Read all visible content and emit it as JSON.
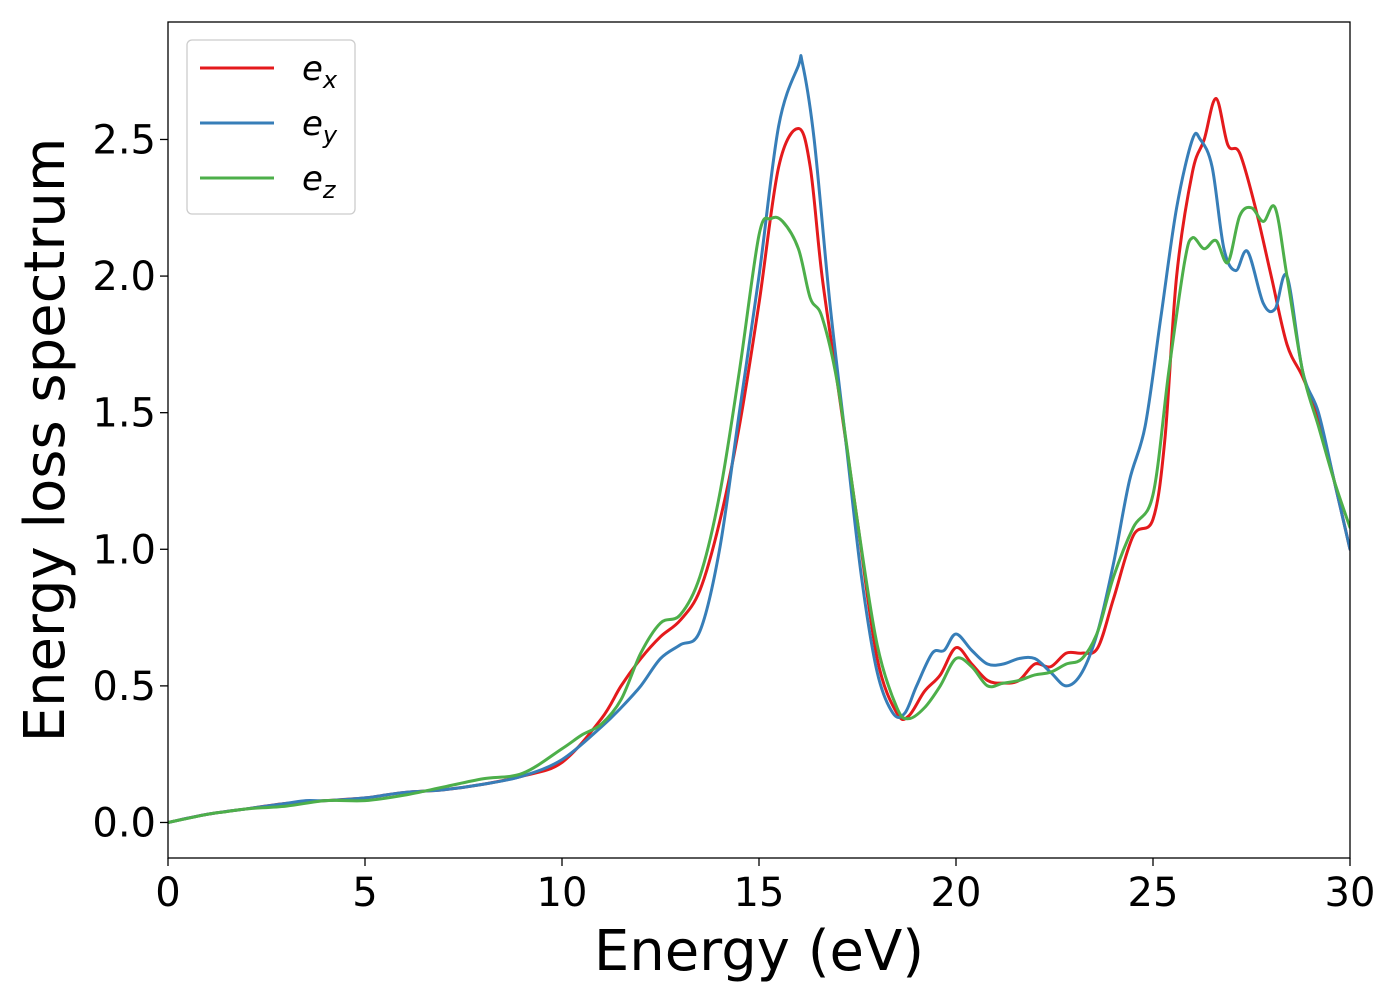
{
  "chart_data": {
    "type": "line",
    "xlabel": "Energy (eV)",
    "ylabel": "Energy loss spectrum",
    "xlim": [
      0,
      30
    ],
    "ylim": [
      -0.13,
      2.93
    ],
    "xticks": [
      0,
      5,
      10,
      15,
      20,
      25,
      30
    ],
    "xtick_labels": [
      "0",
      "5",
      "10",
      "15",
      "20",
      "25",
      "30"
    ],
    "yticks": [
      0.0,
      0.5,
      1.0,
      1.5,
      2.0,
      2.5
    ],
    "ytick_labels": [
      "0.0",
      "0.5",
      "1.0",
      "1.5",
      "2.0",
      "2.5"
    ],
    "grid": false,
    "legend_position": "top-left",
    "series": [
      {
        "name": "e",
        "subscript": "x",
        "color": "#e41a1c",
        "x": [
          0,
          1,
          2,
          3,
          4,
          5,
          6,
          7,
          8,
          9,
          10,
          11,
          11.5,
          12,
          12.5,
          13,
          13.5,
          14,
          14.5,
          15,
          15.5,
          16,
          16.3,
          16.6,
          17,
          17.5,
          18,
          18.5,
          18.8,
          19.2,
          19.6,
          20,
          20.4,
          20.8,
          21.2,
          21.6,
          22,
          22.4,
          22.8,
          23.2,
          23.6,
          24,
          24.5,
          25,
          25.3,
          25.6,
          26,
          26.3,
          26.6,
          26.9,
          27.2,
          27.6,
          28,
          28.4,
          28.8,
          29.2,
          29.6,
          30
        ],
        "y": [
          0,
          0.03,
          0.05,
          0.07,
          0.08,
          0.09,
          0.11,
          0.12,
          0.14,
          0.17,
          0.22,
          0.38,
          0.5,
          0.6,
          0.68,
          0.74,
          0.85,
          1.1,
          1.45,
          1.9,
          2.4,
          2.54,
          2.4,
          2.0,
          1.6,
          1.1,
          0.6,
          0.4,
          0.39,
          0.48,
          0.54,
          0.64,
          0.58,
          0.52,
          0.51,
          0.52,
          0.58,
          0.57,
          0.62,
          0.62,
          0.64,
          0.82,
          1.05,
          1.11,
          1.4,
          2.0,
          2.38,
          2.5,
          2.65,
          2.48,
          2.45,
          2.25,
          2.0,
          1.75,
          1.63,
          1.48,
          1.25,
          1.0
        ]
      },
      {
        "name": "e",
        "subscript": "y",
        "color": "#377eb8",
        "x": [
          0,
          1,
          2,
          3,
          3.5,
          4,
          5,
          6,
          7,
          8,
          9,
          10,
          11,
          11.5,
          12,
          12.5,
          13,
          13.5,
          14,
          14.5,
          15,
          15.5,
          16,
          16.1,
          16.4,
          16.8,
          17.2,
          17.6,
          18,
          18.4,
          18.7,
          19,
          19.4,
          19.7,
          20,
          20.4,
          20.8,
          21.2,
          21.6,
          22,
          22.4,
          22.8,
          23.2,
          23.6,
          24,
          24.4,
          24.8,
          25.2,
          25.6,
          26,
          26.2,
          26.5,
          26.8,
          27.1,
          27.4,
          27.8,
          28.1,
          28.4,
          28.8,
          29.2,
          29.6,
          30
        ],
        "y": [
          0,
          0.03,
          0.05,
          0.07,
          0.08,
          0.08,
          0.09,
          0.11,
          0.12,
          0.14,
          0.17,
          0.23,
          0.35,
          0.42,
          0.5,
          0.6,
          0.65,
          0.7,
          1.0,
          1.5,
          2.0,
          2.55,
          2.77,
          2.78,
          2.5,
          1.9,
          1.4,
          0.9,
          0.55,
          0.4,
          0.4,
          0.5,
          0.62,
          0.63,
          0.69,
          0.63,
          0.58,
          0.58,
          0.6,
          0.6,
          0.55,
          0.5,
          0.55,
          0.7,
          0.95,
          1.25,
          1.45,
          1.85,
          2.25,
          2.5,
          2.5,
          2.4,
          2.1,
          2.02,
          2.09,
          1.9,
          1.88,
          2.0,
          1.65,
          1.5,
          1.25,
          1.0
        ]
      },
      {
        "name": "e",
        "subscript": "z",
        "color": "#4daf4a",
        "x": [
          0,
          1,
          1.5,
          2,
          3,
          4,
          5,
          6,
          7,
          8,
          9,
          10,
          10.5,
          11,
          11.5,
          12,
          12.5,
          13,
          13.5,
          14,
          14.5,
          15,
          15.3,
          15.6,
          16,
          16.3,
          16.6,
          17,
          17.5,
          18,
          18.5,
          18.8,
          19.2,
          19.6,
          20,
          20.4,
          20.8,
          21.2,
          21.6,
          22,
          22.4,
          22.8,
          23.2,
          23.6,
          24,
          24.5,
          25,
          25.4,
          25.8,
          26,
          26.3,
          26.6,
          26.9,
          27.2,
          27.5,
          27.8,
          28.1,
          28.4,
          28.8,
          29.2,
          29.6,
          30
        ],
        "y": [
          0,
          0.03,
          0.04,
          0.05,
          0.06,
          0.08,
          0.08,
          0.1,
          0.13,
          0.16,
          0.18,
          0.27,
          0.32,
          0.36,
          0.45,
          0.62,
          0.73,
          0.76,
          0.9,
          1.2,
          1.65,
          2.15,
          2.21,
          2.2,
          2.1,
          1.92,
          1.85,
          1.6,
          1.1,
          0.65,
          0.42,
          0.38,
          0.42,
          0.5,
          0.6,
          0.57,
          0.5,
          0.51,
          0.52,
          0.54,
          0.55,
          0.58,
          0.6,
          0.7,
          0.9,
          1.08,
          1.2,
          1.65,
          2.05,
          2.14,
          2.1,
          2.13,
          2.05,
          2.22,
          2.25,
          2.2,
          2.25,
          2.0,
          1.65,
          1.45,
          1.25,
          1.08
        ]
      }
    ]
  }
}
